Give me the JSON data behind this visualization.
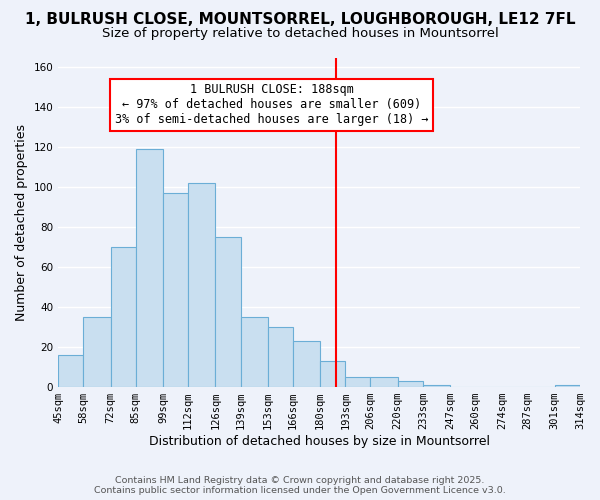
{
  "title": "1, BULRUSH CLOSE, MOUNTSORREL, LOUGHBOROUGH, LE12 7FL",
  "subtitle": "Size of property relative to detached houses in Mountsorrel",
  "xlabel": "Distribution of detached houses by size in Mountsorrel",
  "ylabel": "Number of detached properties",
  "bar_edges": [
    45,
    58,
    72,
    85,
    99,
    112,
    126,
    139,
    153,
    166,
    180,
    193,
    206,
    220,
    233,
    247,
    260,
    274,
    287,
    301,
    314
  ],
  "bar_heights": [
    16,
    35,
    70,
    119,
    97,
    102,
    75,
    35,
    30,
    23,
    13,
    5,
    5,
    3,
    1,
    0,
    0,
    0,
    0,
    1
  ],
  "bar_color": "#c9dff0",
  "bar_edge_color": "#6baed6",
  "vline_x": 188,
  "vline_color": "red",
  "annotation_title": "1 BULRUSH CLOSE: 188sqm",
  "annotation_line1": "← 97% of detached houses are smaller (609)",
  "annotation_line2": "3% of semi-detached houses are larger (18) →",
  "annotation_box_color": "white",
  "annotation_box_edge_color": "red",
  "ylim": [
    0,
    165
  ],
  "xlim_left": 45,
  "xlim_right": 314,
  "tick_labels": [
    "45sqm",
    "58sqm",
    "72sqm",
    "85sqm",
    "99sqm",
    "112sqm",
    "126sqm",
    "139sqm",
    "153sqm",
    "166sqm",
    "180sqm",
    "193sqm",
    "206sqm",
    "220sqm",
    "233sqm",
    "247sqm",
    "260sqm",
    "274sqm",
    "287sqm",
    "301sqm",
    "314sqm"
  ],
  "footnote1": "Contains HM Land Registry data © Crown copyright and database right 2025.",
  "footnote2": "Contains public sector information licensed under the Open Government Licence v3.0.",
  "background_color": "#eef2fa",
  "grid_color": "#ffffff",
  "title_fontsize": 11,
  "subtitle_fontsize": 9.5,
  "xlabel_fontsize": 9,
  "ylabel_fontsize": 9,
  "tick_fontsize": 7.5,
  "annotation_fontsize": 8.5,
  "footnote_fontsize": 6.8,
  "yticks": [
    0,
    20,
    40,
    60,
    80,
    100,
    120,
    140,
    160
  ]
}
